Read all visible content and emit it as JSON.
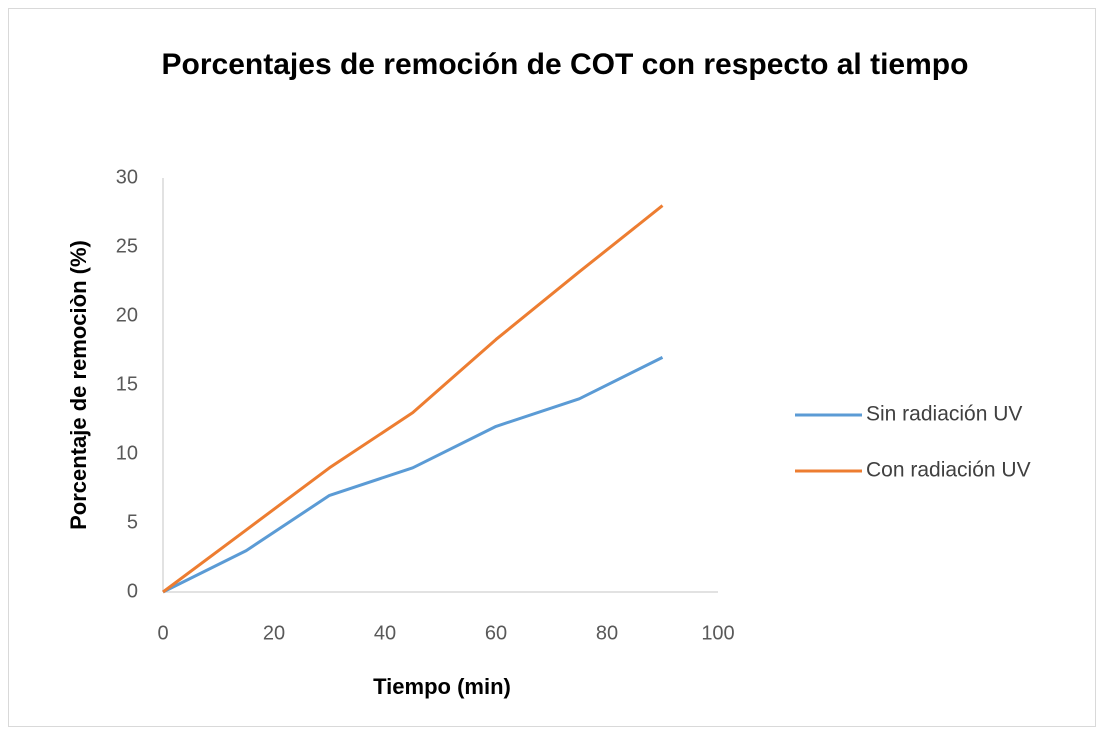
{
  "chart_data": {
    "type": "line",
    "title": "Porcentajes de remoción de COT con respecto al tiempo",
    "x_label": "Tiempo (min)",
    "y_label": "Porcentaje de remociòn (%)",
    "x": [
      0,
      15,
      30,
      45,
      60,
      75,
      90
    ],
    "series": [
      {
        "name": "Sin radiación UV",
        "color": "#5b9bd5",
        "values": [
          0,
          3,
          7,
          9,
          12,
          14,
          17
        ]
      },
      {
        "name": "Con radiación UV",
        "color": "#ed7d31",
        "values": [
          0,
          4.5,
          9,
          13,
          18.3,
          23.2,
          28
        ]
      }
    ],
    "xlim": [
      0,
      100
    ],
    "xticks": [
      0,
      20,
      40,
      60,
      80,
      100
    ],
    "ylim": [
      0,
      30
    ],
    "yticks": [
      0,
      5,
      10,
      15,
      20,
      25,
      30
    ],
    "grid": false,
    "legend": "right"
  }
}
